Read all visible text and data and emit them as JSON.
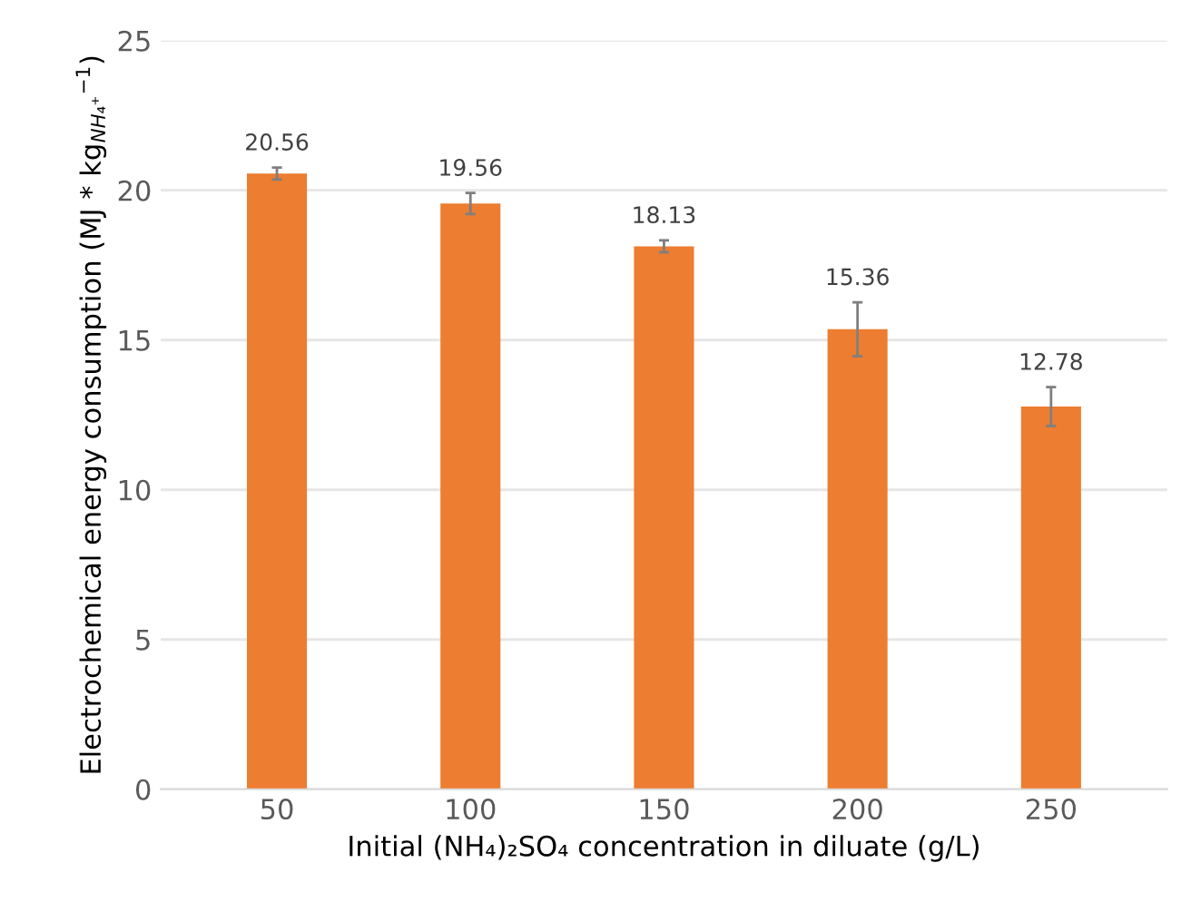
{
  "chart_data": {
    "type": "bar",
    "xlabel": "Initial (NH₄)₂SO₄ concentration in diluate (g/L)",
    "ylabel": "Electrochemical energy consumption (MJ * kg$_{NH₄⁺}$$^{−1}$)",
    "categories": [
      "50",
      "100",
      "150",
      "200",
      "250"
    ],
    "values": [
      20.56,
      19.56,
      18.13,
      15.36,
      12.78
    ],
    "errors": [
      0.2,
      0.35,
      0.2,
      0.9,
      0.65
    ],
    "color": "#ed7d31",
    "ylim": [
      0,
      25
    ],
    "yticks": [
      0,
      5,
      10,
      15,
      20,
      25
    ],
    "grid": "y",
    "data_labels": true
  }
}
